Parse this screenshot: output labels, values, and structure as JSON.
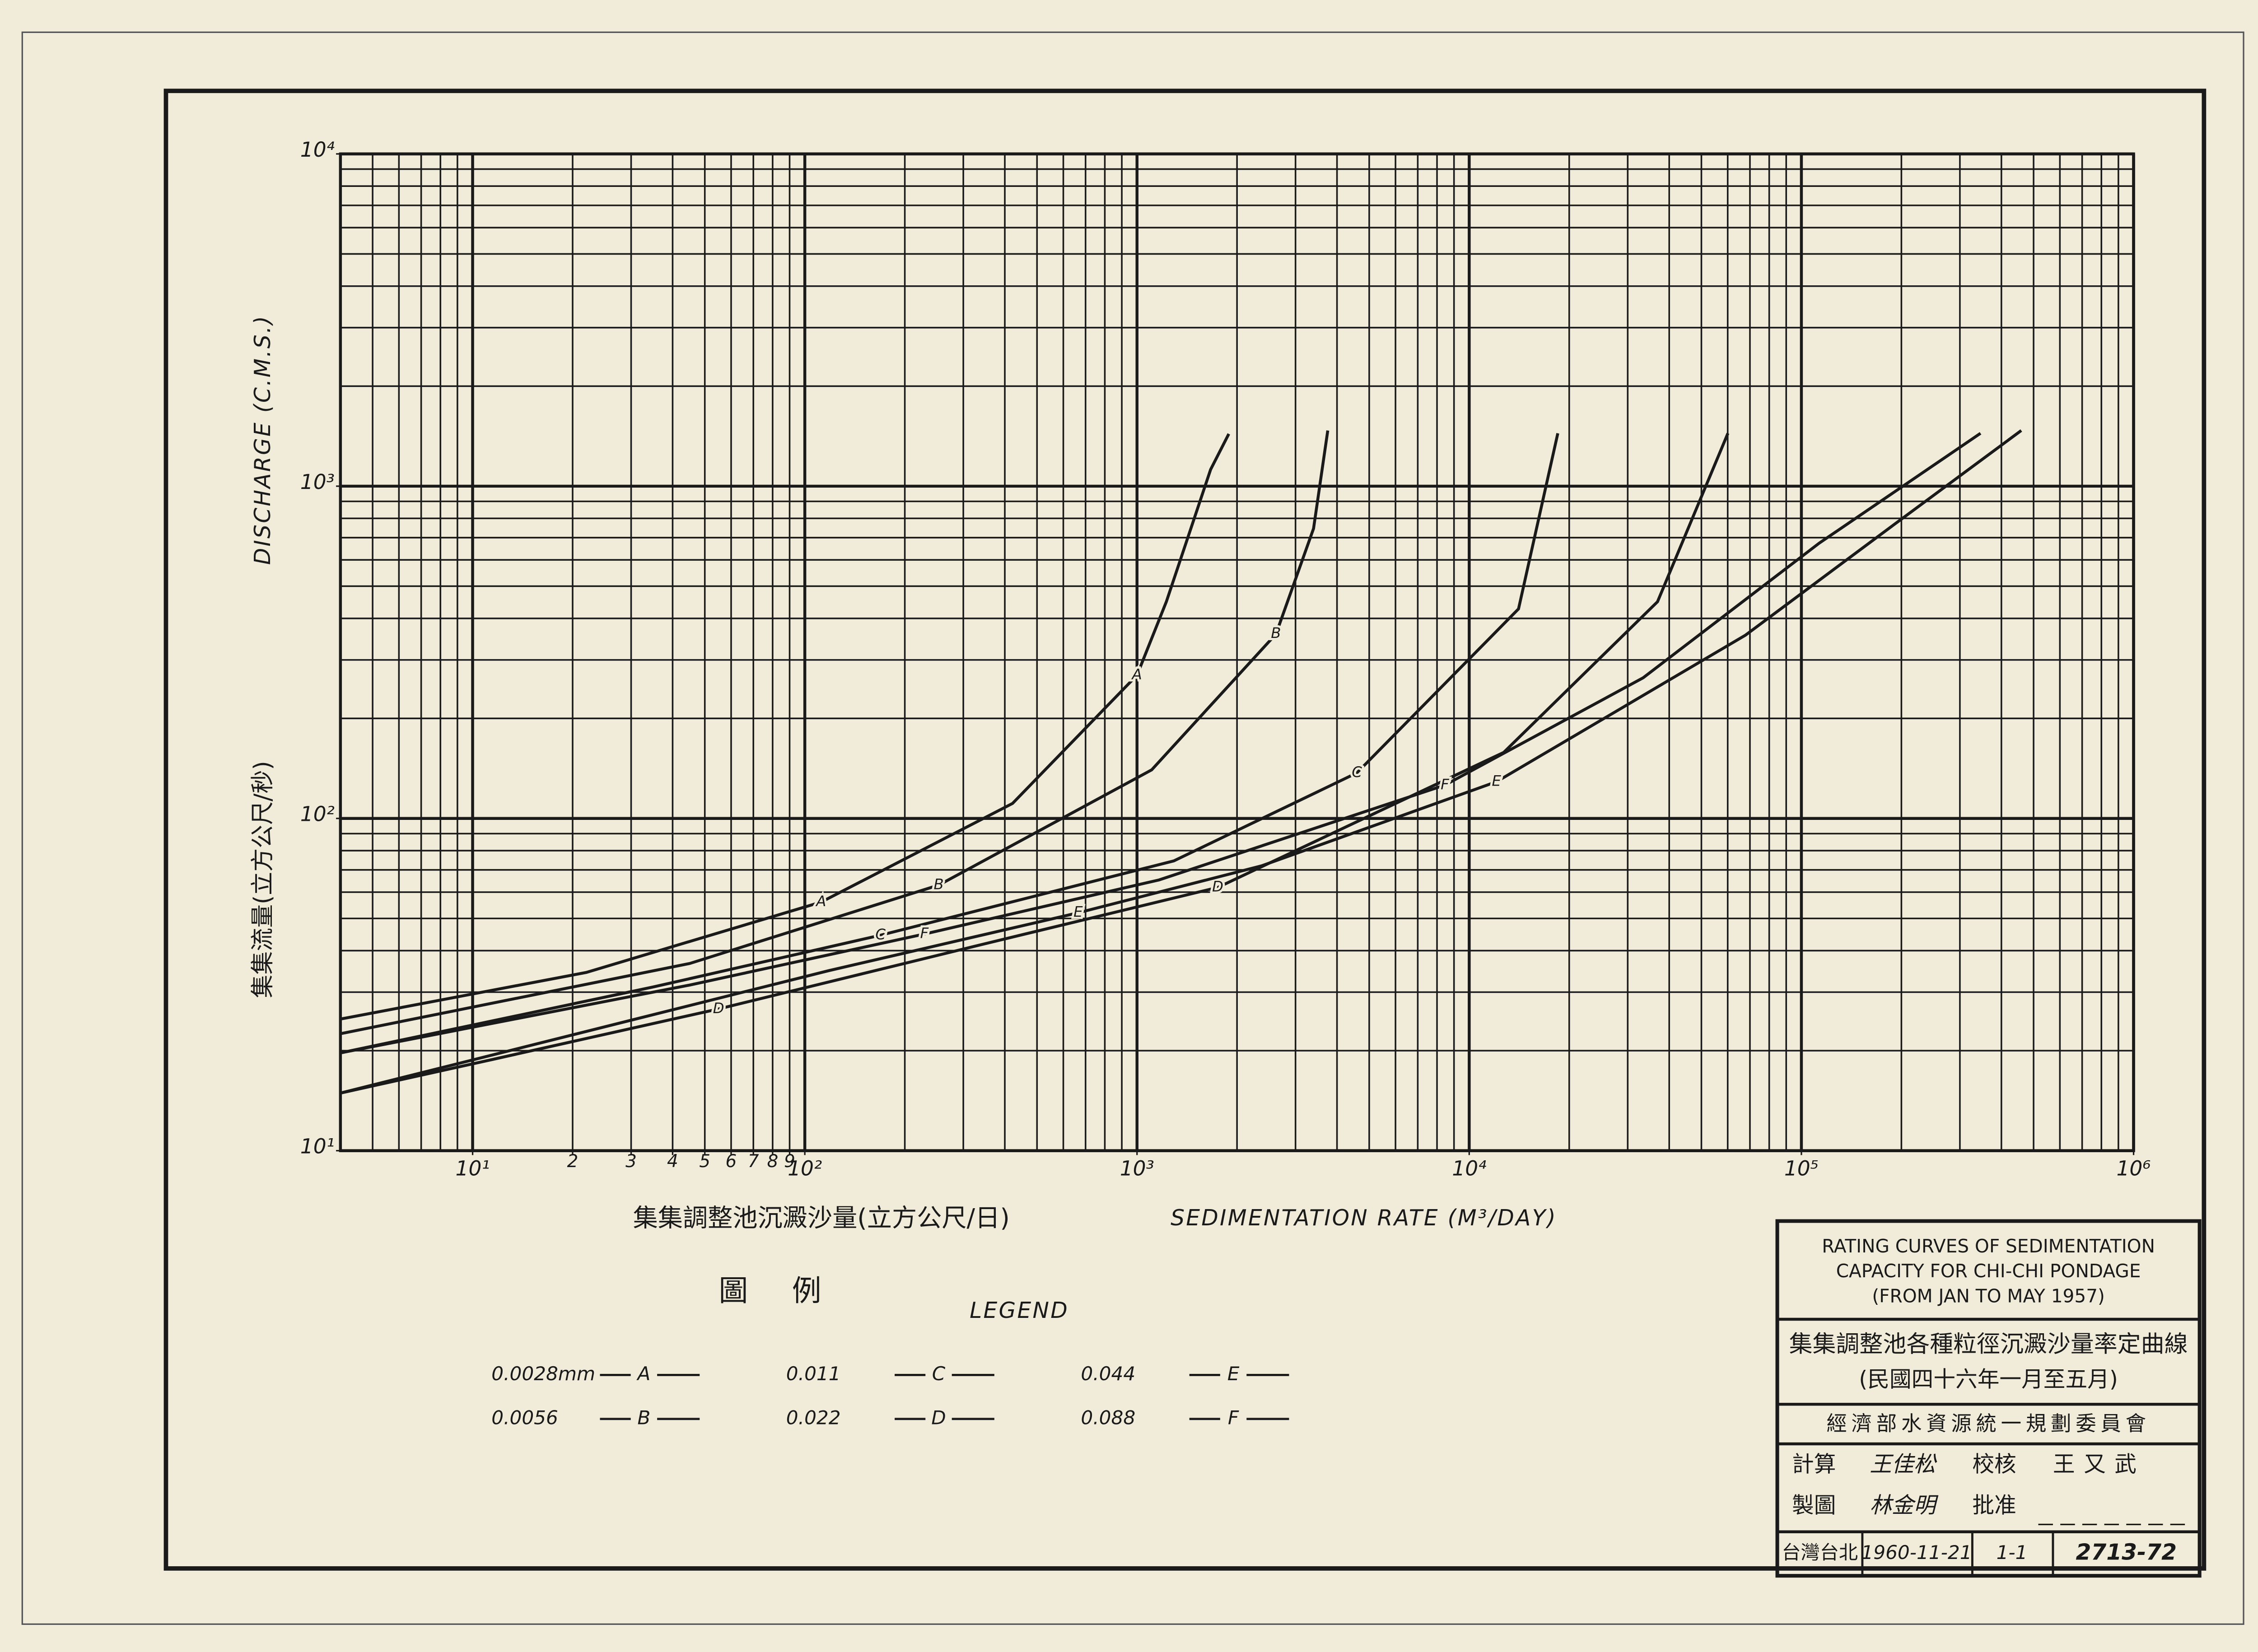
{
  "chart_data": {
    "type": "line",
    "xlabel_cn": "集集調整池沉澱沙量(立方公尺/日)",
    "xlabel": "SEDIMENTATION RATE (M³/DAY)",
    "ylabel": "DISCHARGE (C.M.S.)",
    "ylabel_cn": "集集流量(立方公尺/秒)",
    "log_x": true,
    "log_y": true,
    "grid": true,
    "xlim": [
      4,
      1000000
    ],
    "ylim": [
      10,
      10000
    ],
    "xticks": [
      {
        "value": 10,
        "label": "10¹"
      },
      {
        "value": 20,
        "label": "2"
      },
      {
        "value": 30,
        "label": "3"
      },
      {
        "value": 40,
        "label": "4"
      },
      {
        "value": 50,
        "label": "5"
      },
      {
        "value": 60,
        "label": "6"
      },
      {
        "value": 70,
        "label": "7"
      },
      {
        "value": 80,
        "label": "8"
      },
      {
        "value": 90,
        "label": "9"
      },
      {
        "value": 100,
        "label": "10²"
      },
      {
        "value": 1000,
        "label": "10³"
      },
      {
        "value": 10000,
        "label": "10⁴"
      },
      {
        "value": 100000,
        "label": "10⁵"
      },
      {
        "value": 1000000,
        "label": "10⁶"
      }
    ],
    "yticks": [
      {
        "value": 10,
        "label": "10¹"
      },
      {
        "value": 100,
        "label": "10²"
      },
      {
        "value": 1000,
        "label": "10³"
      },
      {
        "value": 10000,
        "label": "10⁴"
      }
    ],
    "xgrid": [
      5,
      6,
      7,
      8,
      9,
      10,
      20,
      30,
      40,
      50,
      60,
      70,
      80,
      90,
      100,
      200,
      300,
      400,
      500,
      600,
      700,
      800,
      900,
      1000,
      2000,
      3000,
      4000,
      5000,
      6000,
      7000,
      8000,
      9000,
      10000,
      20000,
      30000,
      40000,
      50000,
      60000,
      70000,
      80000,
      90000,
      100000,
      200000,
      300000,
      400000,
      500000,
      600000,
      700000,
      800000,
      900000,
      1000000
    ],
    "ygrid": [
      10,
      20,
      30,
      40,
      50,
      60,
      70,
      80,
      90,
      100,
      200,
      300,
      400,
      500,
      600,
      700,
      800,
      900,
      1000,
      2000,
      3000,
      4000,
      5000,
      6000,
      7000,
      8000,
      9000,
      10000
    ],
    "color": "#1a1a1a",
    "legend_title_cn": "圖例",
    "legend_title": "LEGEND",
    "series": [
      {
        "name": "A",
        "size": "0.0028mm",
        "x": [
          4,
          22,
          112,
          422,
          1000,
          1225,
          1666,
          1890
        ],
        "values": [
          24.9,
          34.4,
          56,
          111,
          270,
          449,
          1122,
          1436
        ]
      },
      {
        "name": "B",
        "size": "0.0056",
        "x": [
          4,
          45,
          253,
          1107,
          2620,
          3400,
          3750
        ],
        "values": [
          22.5,
          36.6,
          63,
          140,
          359,
          745,
          1470
        ]
      },
      {
        "name": "C",
        "size": "0.011",
        "x": [
          4,
          35,
          169,
          1290,
          4590,
          14070,
          18490
        ],
        "values": [
          19.7,
          31.1,
          44.5,
          74.5,
          137,
          427,
          1443
        ]
      },
      {
        "name": "D",
        "size": "0.022",
        "x": [
          4,
          11.4,
          55,
          361,
          1750,
          12700,
          36900,
          60100
        ],
        "values": [
          14.9,
          18.8,
          26.7,
          42.3,
          62,
          158,
          449,
          1443
        ]
      },
      {
        "name": "E",
        "size": "0.044",
        "x": [
          4,
          118,
          665,
          2370,
          12080,
          67900,
          188000,
          459000
        ],
        "values": [
          14.9,
          34.8,
          52,
          72,
          129,
          356,
          760,
          1470
        ]
      },
      {
        "name": "F",
        "size": "0.088",
        "x": [
          4,
          45,
          229,
          1165,
          8450,
          33400,
          113000,
          346000
        ],
        "values": [
          19.7,
          31.5,
          44.9,
          65.3,
          126,
          265,
          673,
          1443
        ]
      }
    ]
  },
  "title_block": {
    "title_en": [
      "RATING CURVES OF SEDIMENTATION",
      "CAPACITY FOR CHI-CHI PONDAGE",
      "(FROM JAN TO MAY 1957)"
    ],
    "title_cn": "集集調整池各種粒徑沉澱沙量率定曲線",
    "period_cn": "(民國四十六年一月至五月)",
    "agency": "經濟部水資源統一規劃委員會",
    "calc_label": "計算",
    "calc_name": "王佳松",
    "check_label": "校核",
    "check_name": "王又武",
    "draw_label": "製圖",
    "draw_name": "林金明",
    "approve_label": "批准",
    "place": "台灣台北",
    "date": "1960-11-21",
    "sheet": "1-1",
    "number": "2713-72"
  }
}
